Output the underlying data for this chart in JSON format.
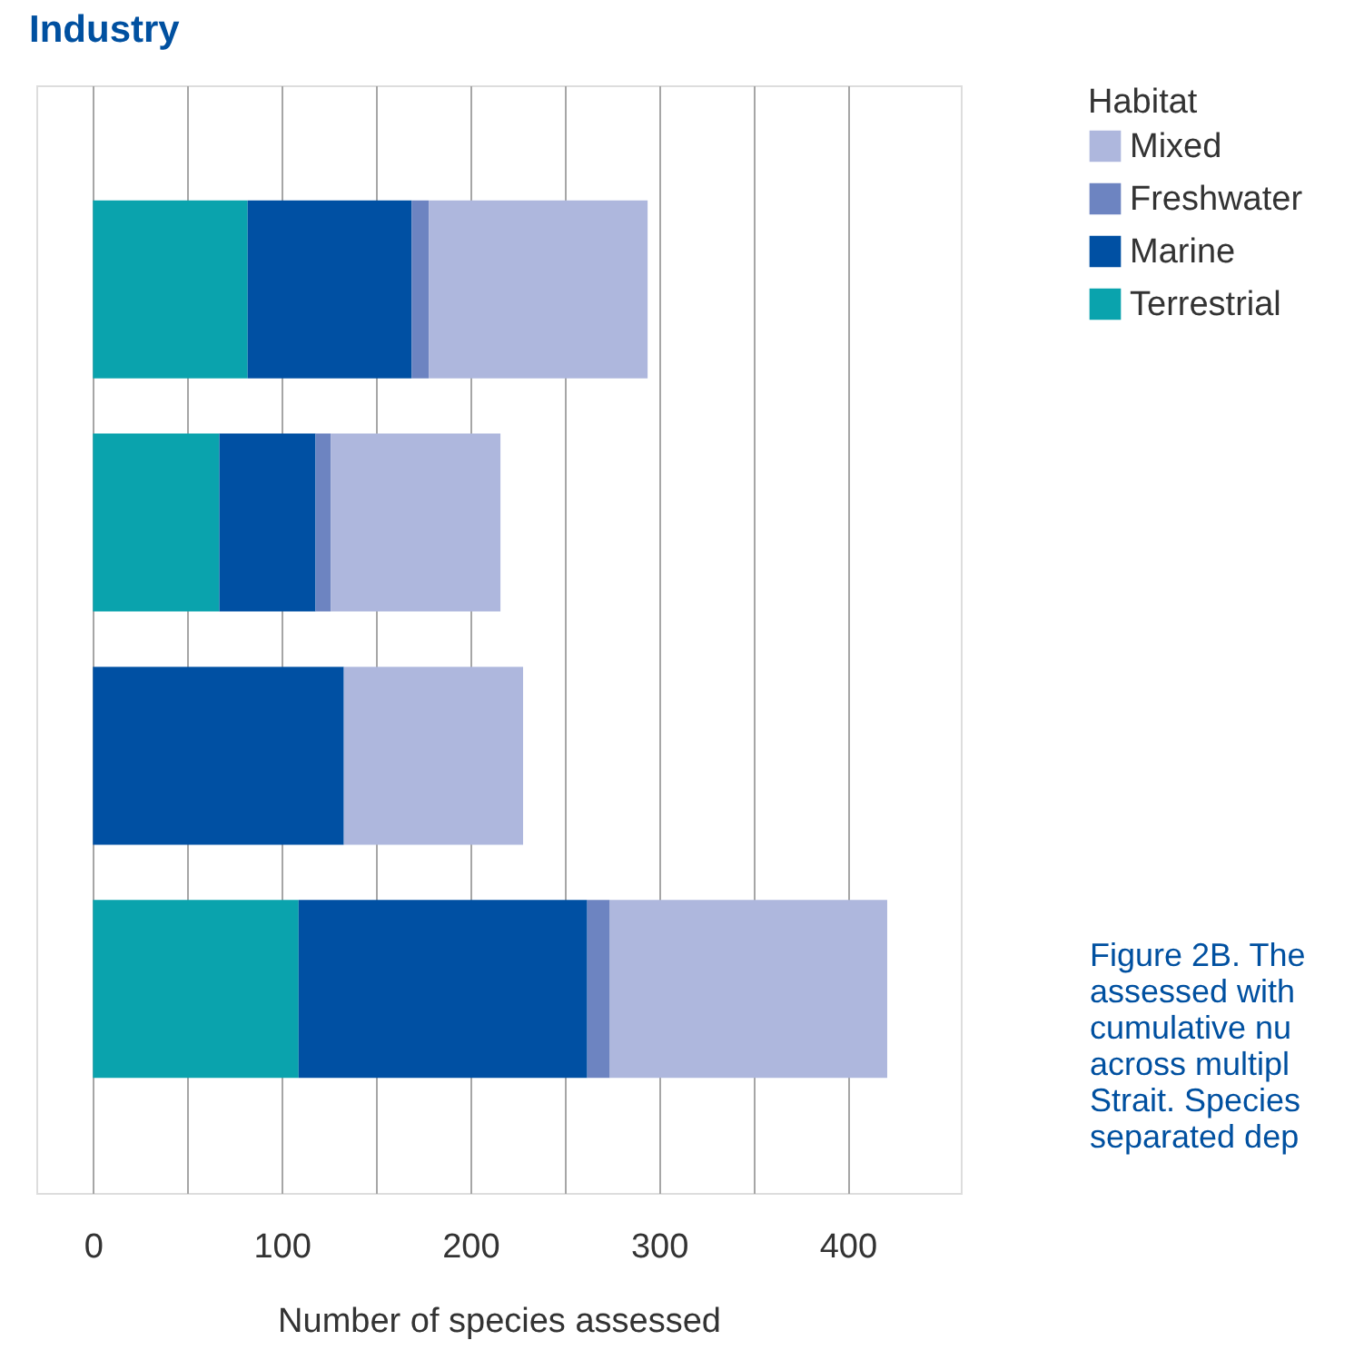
{
  "chart_data": {
    "type": "bar",
    "orientation": "horizontal",
    "stacked": true,
    "title": "Industry",
    "categories": [
      null,
      null,
      null,
      null
    ],
    "series": [
      {
        "name": "Terrestrial",
        "color": "#0aa3ad",
        "values": [
          82,
          67,
          0,
          109
        ]
      },
      {
        "name": "Marine",
        "color": "#0050a3",
        "values": [
          87,
          51,
          133,
          153
        ]
      },
      {
        "name": "Freshwater",
        "color": "#6d84c1",
        "values": [
          9,
          8,
          0,
          12
        ]
      },
      {
        "name": "Mixed",
        "color": "#aeb7dd",
        "values": [
          116,
          90,
          95,
          147
        ]
      }
    ],
    "xlabel": "Number of species assessed",
    "legend_title": "Habitat",
    "legend": "right",
    "xlim": [
      -30,
      460
    ],
    "xticks": [
      0,
      {
        "value": 50,
        "label": null
      },
      100,
      {
        "value": 150,
        "label": null
      },
      200,
      {
        "value": 250,
        "label": null
      },
      300,
      {
        "value": 350,
        "label": null
      },
      400
    ],
    "grid": "x",
    "annotations": [
      "Figure 2B. The",
      "assessed with",
      "cumulative nu",
      "across multipl",
      "Strait. Species",
      "separated dep"
    ]
  }
}
